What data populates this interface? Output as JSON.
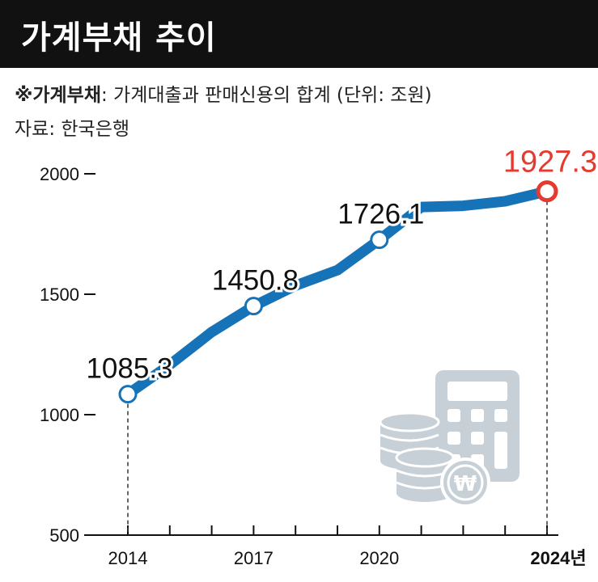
{
  "header": {
    "title": "가계부채 추이"
  },
  "notes": {
    "definition_term": "※가계부채",
    "definition_text": ": 가계대출과 판매신용의 합계 (단위: 조원)",
    "source": "자료: 한국은행"
  },
  "colors": {
    "line": "#1673b8",
    "highlight": "#e53a2f",
    "icon": "#c7d0d6",
    "axis": "#111111"
  },
  "icons": [
    "calculator-icon",
    "coin-stack-icon",
    "won-coin-icon"
  ],
  "chart_data": {
    "type": "line",
    "x": [
      2014,
      2015,
      2016,
      2017,
      2018,
      2019,
      2020,
      2021,
      2022,
      2023,
      2024
    ],
    "series": [
      {
        "values": [
          1085.3,
          1207.0,
          1343.0,
          1450.8,
          1536.0,
          1600.0,
          1726.1,
          1862.0,
          1867.0,
          1886.0,
          1927.3
        ]
      }
    ],
    "labeled_points": [
      {
        "x": 2014,
        "y": 1085.3,
        "label": "1085.3"
      },
      {
        "x": 2017,
        "y": 1450.8,
        "label": "1450.8"
      },
      {
        "x": 2020,
        "y": 1726.1,
        "label": "1726.1"
      },
      {
        "x": 2024,
        "y": 1927.3,
        "label": "1927.3",
        "highlight": true
      }
    ],
    "ylim": [
      500,
      2000
    ],
    "yticks": [
      "500",
      "1000",
      "1500",
      "2000"
    ],
    "xticks": [
      "2014",
      "2017",
      "2020",
      "2024년"
    ],
    "xtick_values": [
      2014,
      2017,
      2020,
      2024
    ],
    "xlabel": "",
    "ylabel": "",
    "grid": false
  }
}
